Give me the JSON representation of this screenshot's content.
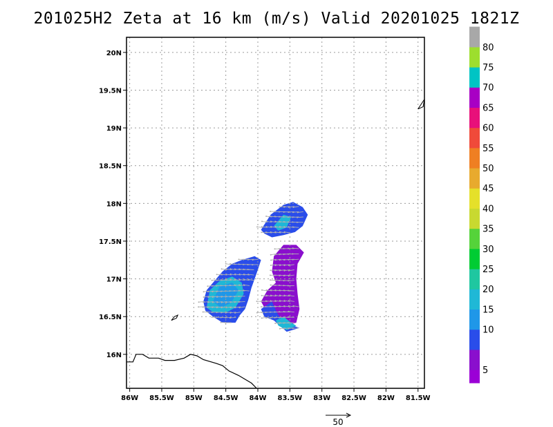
{
  "title": "201025H2 Zeta at 16 km (m/s) Valid 20201025 1821Z",
  "map": {
    "lon_range": [
      -86.05,
      -81.4
    ],
    "lat_range": [
      15.55,
      20.2
    ],
    "lon_ticks": [
      {
        "value": -86,
        "label": "86W"
      },
      {
        "value": -85.5,
        "label": "85.5W"
      },
      {
        "value": -85,
        "label": "85W"
      },
      {
        "value": -84.5,
        "label": "84.5W"
      },
      {
        "value": -84,
        "label": "84W"
      },
      {
        "value": -83.5,
        "label": "83.5W"
      },
      {
        "value": -83,
        "label": "83W"
      },
      {
        "value": -82.5,
        "label": "82.5W"
      },
      {
        "value": -82,
        "label": "82W"
      },
      {
        "value": -81.5,
        "label": "81.5W"
      }
    ],
    "lat_ticks": [
      {
        "value": 16,
        "label": "16N"
      },
      {
        "value": 16.5,
        "label": "16.5N"
      },
      {
        "value": 17,
        "label": "17N"
      },
      {
        "value": 17.5,
        "label": "17.5N"
      },
      {
        "value": 18,
        "label": "18N"
      },
      {
        "value": 18.5,
        "label": "18.5N"
      },
      {
        "value": 19,
        "label": "19N"
      },
      {
        "value": 19.5,
        "label": "19.5N"
      },
      {
        "value": 20,
        "label": "20N"
      }
    ],
    "grid": true,
    "coastline": [
      [
        -86.05,
        15.9
      ],
      [
        -85.95,
        15.9
      ],
      [
        -85.9,
        16.0
      ],
      [
        -85.8,
        16.0
      ],
      [
        -85.7,
        15.95
      ],
      [
        -85.55,
        15.95
      ],
      [
        -85.45,
        15.92
      ],
      [
        -85.3,
        15.92
      ],
      [
        -85.15,
        15.95
      ],
      [
        -85.05,
        16.0
      ],
      [
        -84.95,
        15.98
      ],
      [
        -84.85,
        15.93
      ],
      [
        -84.65,
        15.88
      ],
      [
        -84.55,
        15.85
      ],
      [
        -84.45,
        15.78
      ],
      [
        -84.3,
        15.72
      ],
      [
        -84.18,
        15.66
      ],
      [
        -84.1,
        15.62
      ],
      [
        -84.02,
        15.55
      ]
    ],
    "islands": [
      [
        [
          -85.35,
          16.45
        ],
        [
          -85.27,
          16.48
        ],
        [
          -85.25,
          16.52
        ],
        [
          -85.3,
          16.5
        ],
        [
          -85.35,
          16.45
        ]
      ],
      [
        [
          -81.5,
          19.25
        ],
        [
          -81.4,
          19.38
        ],
        [
          -81.42,
          19.28
        ],
        [
          -81.5,
          19.25
        ]
      ]
    ],
    "regions": [
      {
        "name": "western-cluster",
        "color": "#2a4dea",
        "polygon": [
          [
            -84.85,
            16.7
          ],
          [
            -84.8,
            16.85
          ],
          [
            -84.7,
            16.95
          ],
          [
            -84.55,
            17.1
          ],
          [
            -84.4,
            17.2
          ],
          [
            -84.25,
            17.25
          ],
          [
            -84.05,
            17.3
          ],
          [
            -83.95,
            17.25
          ],
          [
            -84.0,
            17.12
          ],
          [
            -84.05,
            17.0
          ],
          [
            -84.1,
            16.88
          ],
          [
            -84.15,
            16.72
          ],
          [
            -84.2,
            16.6
          ],
          [
            -84.28,
            16.52
          ],
          [
            -84.35,
            16.42
          ],
          [
            -84.55,
            16.42
          ],
          [
            -84.7,
            16.5
          ],
          [
            -84.82,
            16.58
          ]
        ]
      },
      {
        "name": "western-core",
        "color": "#1fb8d6",
        "polygon": [
          [
            -84.8,
            16.62
          ],
          [
            -84.75,
            16.85
          ],
          [
            -84.6,
            16.97
          ],
          [
            -84.4,
            17.03
          ],
          [
            -84.25,
            16.95
          ],
          [
            -84.22,
            16.8
          ],
          [
            -84.35,
            16.62
          ],
          [
            -84.5,
            16.55
          ],
          [
            -84.7,
            16.56
          ]
        ]
      },
      {
        "name": "western-inner",
        "color": "#1f97e8",
        "polygon": [
          [
            -84.7,
            16.7
          ],
          [
            -84.6,
            16.9
          ],
          [
            -84.4,
            16.95
          ],
          [
            -84.3,
            16.85
          ],
          [
            -84.42,
            16.68
          ],
          [
            -84.58,
            16.62
          ]
        ]
      },
      {
        "name": "northern-cluster",
        "color": "#2a4dea",
        "polygon": [
          [
            -83.95,
            17.65
          ],
          [
            -83.8,
            17.85
          ],
          [
            -83.6,
            17.98
          ],
          [
            -83.45,
            18.02
          ],
          [
            -83.3,
            17.95
          ],
          [
            -83.22,
            17.85
          ],
          [
            -83.3,
            17.7
          ],
          [
            -83.42,
            17.62
          ],
          [
            -83.6,
            17.58
          ],
          [
            -83.78,
            17.55
          ],
          [
            -83.9,
            17.6
          ]
        ]
      },
      {
        "name": "northern-core",
        "color": "#1fb8d6",
        "polygon": [
          [
            -83.75,
            17.7
          ],
          [
            -83.6,
            17.85
          ],
          [
            -83.48,
            17.82
          ],
          [
            -83.55,
            17.68
          ],
          [
            -83.68,
            17.64
          ]
        ]
      },
      {
        "name": "eastern-cluster",
        "color": "#8a0fcd",
        "polygon": [
          [
            -83.75,
            17.3
          ],
          [
            -83.6,
            17.45
          ],
          [
            -83.4,
            17.45
          ],
          [
            -83.28,
            17.35
          ],
          [
            -83.38,
            17.2
          ],
          [
            -83.4,
            17.0
          ],
          [
            -83.38,
            16.8
          ],
          [
            -83.35,
            16.6
          ],
          [
            -83.4,
            16.42
          ],
          [
            -83.55,
            16.38
          ],
          [
            -83.7,
            16.45
          ],
          [
            -83.85,
            16.55
          ],
          [
            -83.95,
            16.7
          ],
          [
            -83.85,
            16.85
          ],
          [
            -83.72,
            16.95
          ],
          [
            -83.78,
            17.1
          ]
        ]
      },
      {
        "name": "eastern-south",
        "color": "#2a4dea",
        "polygon": [
          [
            -83.95,
            16.6
          ],
          [
            -83.78,
            16.7
          ],
          [
            -83.7,
            16.55
          ],
          [
            -83.6,
            16.42
          ],
          [
            -83.45,
            16.38
          ],
          [
            -83.35,
            16.35
          ],
          [
            -83.55,
            16.3
          ],
          [
            -83.75,
            16.45
          ],
          [
            -83.9,
            16.5
          ]
        ]
      },
      {
        "name": "eastern-cyan",
        "color": "#1fb8d6",
        "polygon": [
          [
            -83.72,
            16.45
          ],
          [
            -83.6,
            16.5
          ],
          [
            -83.48,
            16.42
          ],
          [
            -83.4,
            16.38
          ],
          [
            -83.55,
            16.32
          ],
          [
            -83.68,
            16.38
          ]
        ]
      }
    ],
    "vector_reference": {
      "label": "50"
    }
  },
  "colorbar": {
    "colors": [
      "#9b00d6",
      "#8a0fcd",
      "#2a4dea",
      "#1f97e8",
      "#1fb8d6",
      "#1fc7a0",
      "#00cc33",
      "#55d33a",
      "#c8d930",
      "#e5e02a",
      "#e8aa2e",
      "#ef7f22",
      "#f04a3a",
      "#e8107a",
      "#a800c4",
      "#00c4c4",
      "#9dde2e",
      "#a8a8a8"
    ],
    "labels": [
      {
        "index": 1,
        "label": "5"
      },
      {
        "index": 3,
        "label": "10"
      },
      {
        "index": 4,
        "label": "15"
      },
      {
        "index": 5,
        "label": "20"
      },
      {
        "index": 6,
        "label": "25"
      },
      {
        "index": 7,
        "label": "30"
      },
      {
        "index": 8,
        "label": "35"
      },
      {
        "index": 9,
        "label": "40"
      },
      {
        "index": 10,
        "label": "45"
      },
      {
        "index": 11,
        "label": "50"
      },
      {
        "index": 12,
        "label": "55"
      },
      {
        "index": 13,
        "label": "60"
      },
      {
        "index": 14,
        "label": "65"
      },
      {
        "index": 15,
        "label": "70"
      },
      {
        "index": 16,
        "label": "75"
      },
      {
        "index": 17,
        "label": "80"
      }
    ]
  }
}
